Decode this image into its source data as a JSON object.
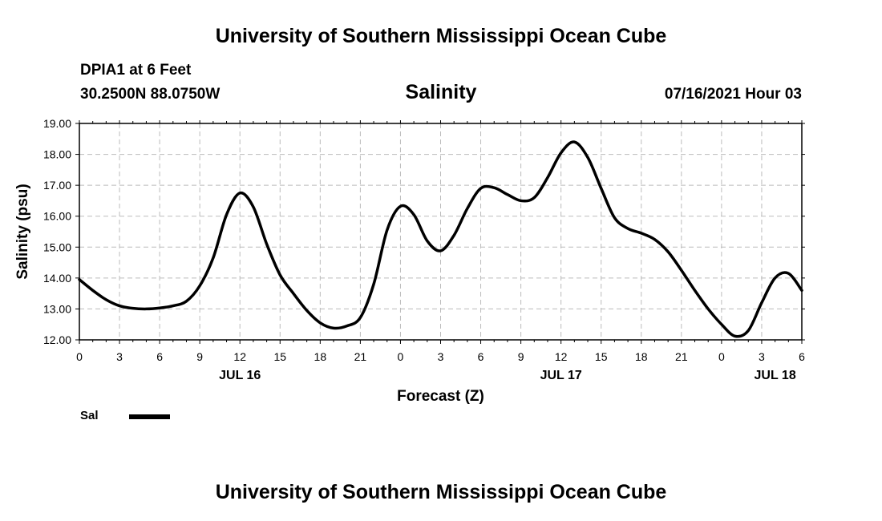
{
  "header": {
    "title": "University of Southern Mississippi Ocean Cube",
    "station": "DPIA1 at 6 Feet",
    "coordinates": "30.2500N  88.0750W",
    "subtitle": "Salinity",
    "timestamp": "07/16/2021 Hour 03"
  },
  "footer": {
    "title": "University of Southern Mississippi Ocean Cube"
  },
  "legend": {
    "label": "Sal"
  },
  "chart_data": {
    "type": "line",
    "title": "Salinity",
    "xlabel": "Forecast (Z)",
    "ylabel": "Salinity (psu)",
    "xlim": [
      0,
      54
    ],
    "ylim": [
      12,
      19
    ],
    "x_unit": "hours since JUL 16 00Z",
    "x_tick_values": [
      0,
      3,
      6,
      9,
      12,
      15,
      18,
      21,
      24,
      27,
      30,
      33,
      36,
      39,
      42,
      45,
      48,
      51,
      54
    ],
    "x_tick_labels": [
      "0",
      "3",
      "6",
      "9",
      "12",
      "15",
      "18",
      "21",
      "0",
      "3",
      "6",
      "9",
      "12",
      "15",
      "18",
      "21",
      "0",
      "3",
      "6"
    ],
    "y_tick_values": [
      12,
      13,
      14,
      15,
      16,
      17,
      18,
      19
    ],
    "y_tick_labels": [
      "12.00",
      "13.00",
      "14.00",
      "15.00",
      "16.00",
      "17.00",
      "18.00",
      "19.00"
    ],
    "date_labels": [
      {
        "label": "JUL 16",
        "x": 12
      },
      {
        "label": "JUL 17",
        "x": 36
      },
      {
        "label": "JUL 18",
        "x": 52
      }
    ],
    "grid": true,
    "legend_position": "bottom-left",
    "line_color": "#000000",
    "series": [
      {
        "name": "Sal",
        "x": [
          0,
          1,
          2,
          3,
          4,
          5,
          6,
          7,
          8,
          9,
          10,
          11,
          12,
          13,
          14,
          15,
          16,
          17,
          18,
          19,
          20,
          21,
          22,
          23,
          24,
          25,
          26,
          27,
          28,
          29,
          30,
          31,
          32,
          33,
          34,
          35,
          36,
          37,
          38,
          39,
          40,
          41,
          42,
          43,
          44,
          45,
          46,
          47,
          48,
          49,
          50,
          51,
          52,
          53,
          54
        ],
        "values": [
          13.95,
          13.6,
          13.3,
          13.1,
          13.02,
          13.0,
          13.03,
          13.1,
          13.25,
          13.75,
          14.65,
          16.05,
          16.75,
          16.3,
          15.1,
          14.1,
          13.5,
          12.95,
          12.55,
          12.38,
          12.45,
          12.72,
          13.8,
          15.55,
          16.32,
          16.05,
          15.2,
          14.88,
          15.38,
          16.25,
          16.9,
          16.92,
          16.7,
          16.5,
          16.6,
          17.25,
          18.05,
          18.4,
          17.9,
          16.9,
          15.95,
          15.6,
          15.45,
          15.25,
          14.85,
          14.25,
          13.6,
          13.0,
          12.5,
          12.12,
          12.3,
          13.2,
          14.0,
          14.15,
          13.6
        ]
      }
    ]
  }
}
